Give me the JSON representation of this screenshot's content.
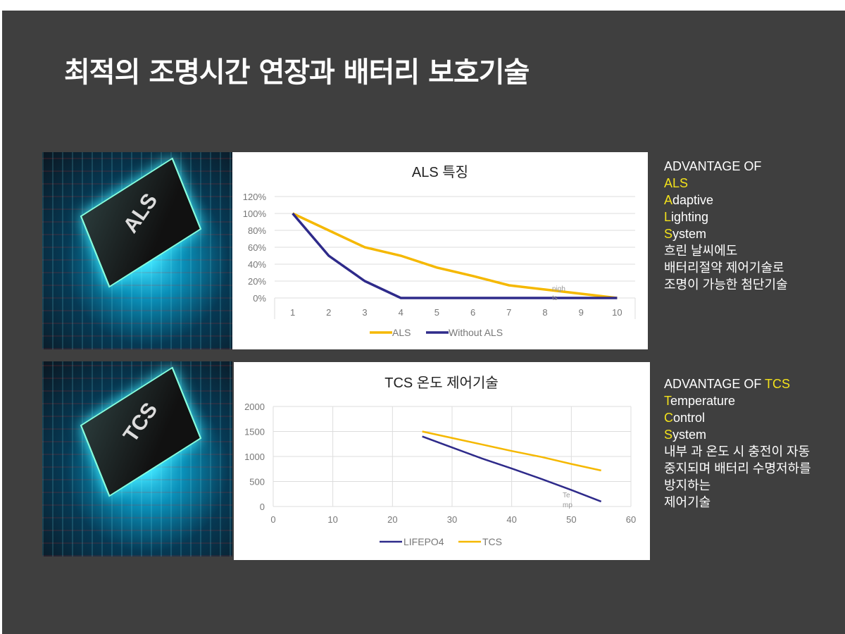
{
  "title": "최적의 조명시간 연장과 배터리 보호기술",
  "images": [
    {
      "logo": "ALS"
    },
    {
      "logo": "TCS"
    }
  ],
  "colors": {
    "yellow": "#f5b800",
    "navy": "#2e2a8a",
    "highlight": "#f3e21b",
    "background": "#3f3f3f"
  },
  "chart_data": [
    {
      "type": "line",
      "title": "ALS 특징",
      "categories": [
        "1",
        "2",
        "3",
        "4",
        "5",
        "6",
        "7",
        "8",
        "9",
        "10"
      ],
      "yticks": [
        "0%",
        "20%",
        "40%",
        "60%",
        "80%",
        "100%",
        "120%"
      ],
      "ylim": [
        0,
        120
      ],
      "grid": true,
      "legend": "bottom",
      "annotation": "nigh ts",
      "series": [
        {
          "name": "ALS",
          "color": "#f5b800",
          "values": [
            100,
            80,
            60,
            50,
            36,
            26,
            15,
            10,
            5,
            0
          ]
        },
        {
          "name": "Without ALS",
          "color": "#2e2a8a",
          "values": [
            100,
            50,
            20,
            0,
            0,
            0,
            0,
            0,
            0,
            0
          ]
        }
      ]
    },
    {
      "type": "line",
      "title": "TCS 온도 제어기술",
      "xlim": [
        0,
        60
      ],
      "ylim": [
        0,
        2000
      ],
      "xticks": [
        "0",
        "10",
        "20",
        "30",
        "40",
        "50",
        "60"
      ],
      "yticks": [
        "0",
        "500",
        "1000",
        "1500",
        "2000"
      ],
      "grid": true,
      "legend": "bottom",
      "annotation": "Te mp",
      "series": [
        {
          "name": "LIFEPO4",
          "color": "#2e2a8a",
          "x": [
            25,
            30,
            35,
            40,
            45,
            50,
            55
          ],
          "y": [
            1400,
            1180,
            960,
            760,
            550,
            330,
            100
          ]
        },
        {
          "name": "TCS",
          "color": "#f5b800",
          "x": [
            25,
            30,
            35,
            40,
            45,
            50,
            55
          ],
          "y": [
            1500,
            1370,
            1240,
            1110,
            990,
            850,
            720
          ]
        }
      ]
    }
  ],
  "side1": {
    "l1": "ADVANTAGE OF",
    "l2": "ALS",
    "l3a": "A",
    "l3b": "daptive",
    "l4a": "L",
    "l4b": "ighting",
    "l5a": "S",
    "l5b": "ystem",
    "l6": "흐린 날씨에도",
    "l7": "배터리절약 제어기술로",
    "l8": "조명이 가능한 첨단기술"
  },
  "side2": {
    "l1": "ADVANTAGE OF ",
    "l1b": "TCS",
    "l2a": "T",
    "l2b": "emperature",
    "l3a": "C",
    "l3b": "ontrol",
    "l4a": "S",
    "l4b": "ystem",
    "l5": "내부 과 온도 시 충전이 자동",
    "l6": "중지되며 배터리 수명저하를",
    "l7": "방지하는",
    "l8": "제어기술"
  }
}
